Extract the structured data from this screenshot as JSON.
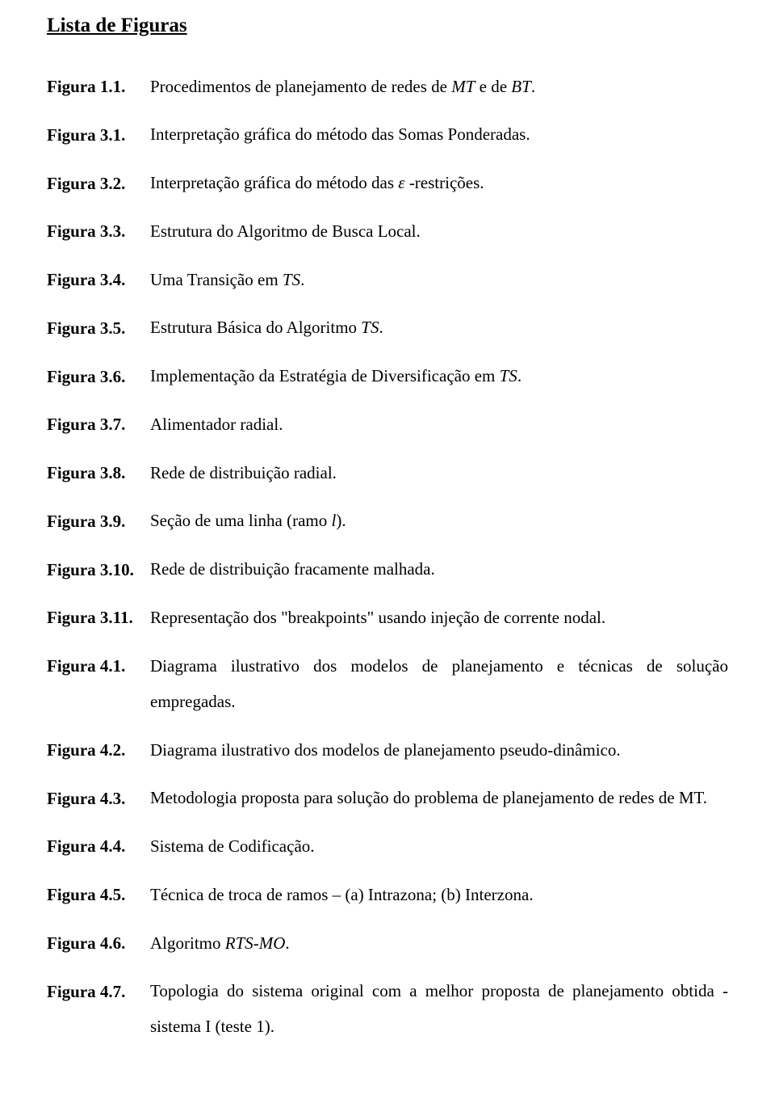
{
  "title": "Lista de Figuras",
  "entries": [
    {
      "label": "Figura 1.1.",
      "segments": [
        {
          "t": "Procedimentos de planejamento de redes de "
        },
        {
          "t": "MT",
          "i": true
        },
        {
          "t": " e de "
        },
        {
          "t": "BT",
          "i": true
        },
        {
          "t": "."
        }
      ]
    },
    {
      "label": "Figura 3.1.",
      "segments": [
        {
          "t": "Interpretação gráfica do método das Somas Ponderadas."
        }
      ]
    },
    {
      "label": "Figura 3.2.",
      "segments": [
        {
          "t": "Interpretação gráfica do método das "
        },
        {
          "t": "ε",
          "eps": true
        },
        {
          "t": " -restrições."
        }
      ]
    },
    {
      "label": "Figura 3.3.",
      "segments": [
        {
          "t": "Estrutura do Algoritmo de Busca Local."
        }
      ]
    },
    {
      "label": "Figura 3.4.",
      "segments": [
        {
          "t": "Uma Transição em "
        },
        {
          "t": "TS",
          "i": true
        },
        {
          "t": "."
        }
      ]
    },
    {
      "label": "Figura 3.5.",
      "segments": [
        {
          "t": "Estrutura Básica do Algoritmo "
        },
        {
          "t": "TS",
          "i": true
        },
        {
          "t": "."
        }
      ]
    },
    {
      "label": "Figura 3.6.",
      "segments": [
        {
          "t": "Implementação da Estratégia de Diversificação em "
        },
        {
          "t": "TS",
          "i": true
        },
        {
          "t": "."
        }
      ]
    },
    {
      "label": "Figura 3.7.",
      "segments": [
        {
          "t": "Alimentador radial."
        }
      ]
    },
    {
      "label": "Figura 3.8.",
      "segments": [
        {
          "t": "Rede de distribuição radial."
        }
      ]
    },
    {
      "label": "Figura 3.9.",
      "segments": [
        {
          "t": "Seção de uma linha (ramo "
        },
        {
          "t": "l",
          "i": true
        },
        {
          "t": ")."
        }
      ]
    },
    {
      "label": "Figura 3.10.",
      "segments": [
        {
          "t": "Rede de distribuição fracamente malhada."
        }
      ]
    },
    {
      "label": "Figura 3.11.",
      "segments": [
        {
          "t": "Representação dos \"breakpoints\" usando injeção de corrente nodal."
        }
      ]
    },
    {
      "label": "Figura 4.1.",
      "segments": [
        {
          "t": "Diagrama ilustrativo dos modelos de planejamento e técnicas de solução empregadas."
        }
      ]
    },
    {
      "label": "Figura 4.2.",
      "segments": [
        {
          "t": "Diagrama ilustrativo dos modelos de planejamento pseudo-dinâmico."
        }
      ]
    },
    {
      "label": "Figura 4.3.",
      "segments": [
        {
          "t": "Metodologia proposta para solução do problema de planejamento de redes de MT."
        }
      ]
    },
    {
      "label": "Figura 4.4.",
      "segments": [
        {
          "t": "Sistema de Codificação."
        }
      ]
    },
    {
      "label": "Figura 4.5.",
      "segments": [
        {
          "t": "Técnica de troca de ramos – (a) Intrazona; (b) Interzona."
        }
      ]
    },
    {
      "label": "Figura 4.6.",
      "segments": [
        {
          "t": "Algoritmo "
        },
        {
          "t": "RTS-MO",
          "i": true
        },
        {
          "t": "."
        }
      ]
    },
    {
      "label": "Figura 4.7.",
      "segments": [
        {
          "t": "Topologia do sistema original com a melhor proposta de planejamento obtida - sistema I (teste 1)."
        }
      ]
    }
  ]
}
